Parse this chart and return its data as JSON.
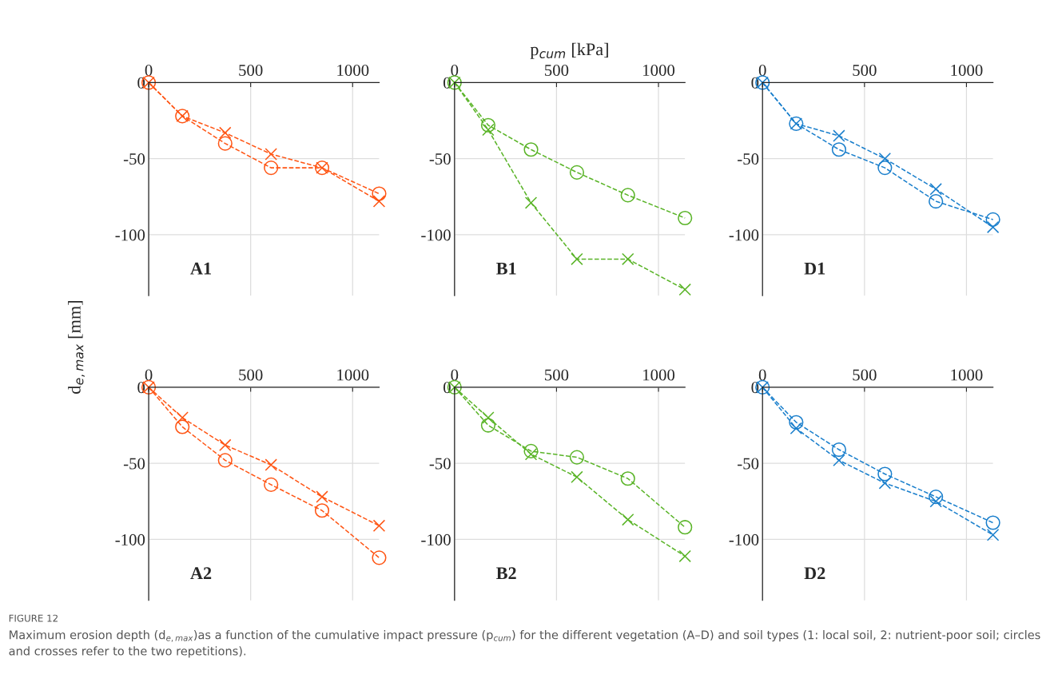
{
  "chart_data": [
    {
      "type": "line",
      "title": "A1",
      "ylabel": "d$_{e,max}$ [mm]",
      "x": [
        0,
        165,
        375,
        600,
        850,
        1130
      ],
      "xlim": [
        0,
        1130
      ],
      "ylim": [
        -140,
        0
      ],
      "xticks": [
        0,
        500,
        1000
      ],
      "yticks": [
        0,
        -50,
        -100
      ],
      "grid": true,
      "line_style": "dashed",
      "series": [
        {
          "color": "#ff5514",
          "marker": "circle",
          "values": [
            0,
            -22,
            -40,
            -56,
            -56,
            -73
          ]
        },
        {
          "color": "#ff5514",
          "marker": "cross",
          "values": [
            0,
            -22,
            -33,
            -47,
            -56,
            -78
          ]
        }
      ]
    },
    {
      "type": "line",
      "title": "B1",
      "xlabel": "p$_{cum}$ [kPa]",
      "x": [
        0,
        165,
        375,
        600,
        850,
        1130
      ],
      "xlim": [
        0,
        1130
      ],
      "ylim": [
        -140,
        0
      ],
      "xticks": [
        0,
        500,
        1000
      ],
      "yticks": [
        0,
        -50,
        -100
      ],
      "grid": true,
      "line_style": "dashed",
      "series": [
        {
          "color": "#5ab428",
          "marker": "circle",
          "values": [
            0,
            -28,
            -44,
            -59,
            -74,
            -89
          ]
        },
        {
          "color": "#5ab428",
          "marker": "cross",
          "values": [
            0,
            -31,
            -79,
            -116,
            -116,
            -136
          ]
        }
      ]
    },
    {
      "type": "line",
      "title": "D1",
      "x": [
        0,
        165,
        375,
        600,
        850,
        1130
      ],
      "xlim": [
        0,
        1130
      ],
      "ylim": [
        -140,
        0
      ],
      "xticks": [
        0,
        500,
        1000
      ],
      "yticks": [
        0,
        -50,
        -100
      ],
      "grid": true,
      "line_style": "dashed",
      "series": [
        {
          "color": "#1a7fcc",
          "marker": "circle",
          "values": [
            0,
            -27,
            -44,
            -56,
            -78,
            -90
          ]
        },
        {
          "color": "#1a7fcc",
          "marker": "cross",
          "values": [
            0,
            -27,
            -35,
            -50,
            -70,
            -95
          ]
        }
      ]
    },
    {
      "type": "line",
      "title": "A2",
      "x": [
        0,
        165,
        375,
        600,
        850,
        1130
      ],
      "xlim": [
        0,
        1130
      ],
      "ylim": [
        -140,
        0
      ],
      "xticks": [
        0,
        500,
        1000
      ],
      "yticks": [
        0,
        -50,
        -100
      ],
      "grid": true,
      "line_style": "dashed",
      "series": [
        {
          "color": "#ff5514",
          "marker": "circle",
          "values": [
            0,
            -26,
            -48,
            -64,
            -81,
            -112
          ]
        },
        {
          "color": "#ff5514",
          "marker": "cross",
          "values": [
            0,
            -20,
            -38,
            -51,
            -72,
            -91
          ]
        }
      ]
    },
    {
      "type": "line",
      "title": "B2",
      "x": [
        0,
        165,
        375,
        600,
        850,
        1130
      ],
      "xlim": [
        0,
        1130
      ],
      "ylim": [
        -140,
        0
      ],
      "xticks": [
        0,
        500,
        1000
      ],
      "yticks": [
        0,
        -50,
        -100
      ],
      "grid": true,
      "line_style": "dashed",
      "series": [
        {
          "color": "#5ab428",
          "marker": "circle",
          "values": [
            0,
            -25,
            -42,
            -46,
            -60,
            -92
          ]
        },
        {
          "color": "#5ab428",
          "marker": "cross",
          "values": [
            0,
            -20,
            -44,
            -59,
            -87,
            -111
          ]
        }
      ]
    },
    {
      "type": "line",
      "title": "D2",
      "x": [
        0,
        165,
        375,
        600,
        850,
        1130
      ],
      "xlim": [
        0,
        1130
      ],
      "ylim": [
        -140,
        0
      ],
      "xticks": [
        0,
        500,
        1000
      ],
      "yticks": [
        0,
        -50,
        -100
      ],
      "grid": true,
      "line_style": "dashed",
      "annotations": [
        "FIGURE 12",
        "Maximum erosion depth (d$_{e,max}$)as a function of the cumulative impact pressure (p$_{cum}$) for the different vegetation (A–D) and soil types (1: local soil, 2: nutrient-poor soil; circles and crosses refer to the two repetitions)."
      ],
      "series": [
        {
          "color": "#1a7fcc",
          "marker": "circle",
          "values": [
            0,
            -23,
            -41,
            -57,
            -72,
            -89
          ]
        },
        {
          "color": "#1a7fcc",
          "marker": "cross",
          "values": [
            0,
            -27,
            -48,
            -63,
            -75,
            -97
          ]
        }
      ]
    }
  ]
}
